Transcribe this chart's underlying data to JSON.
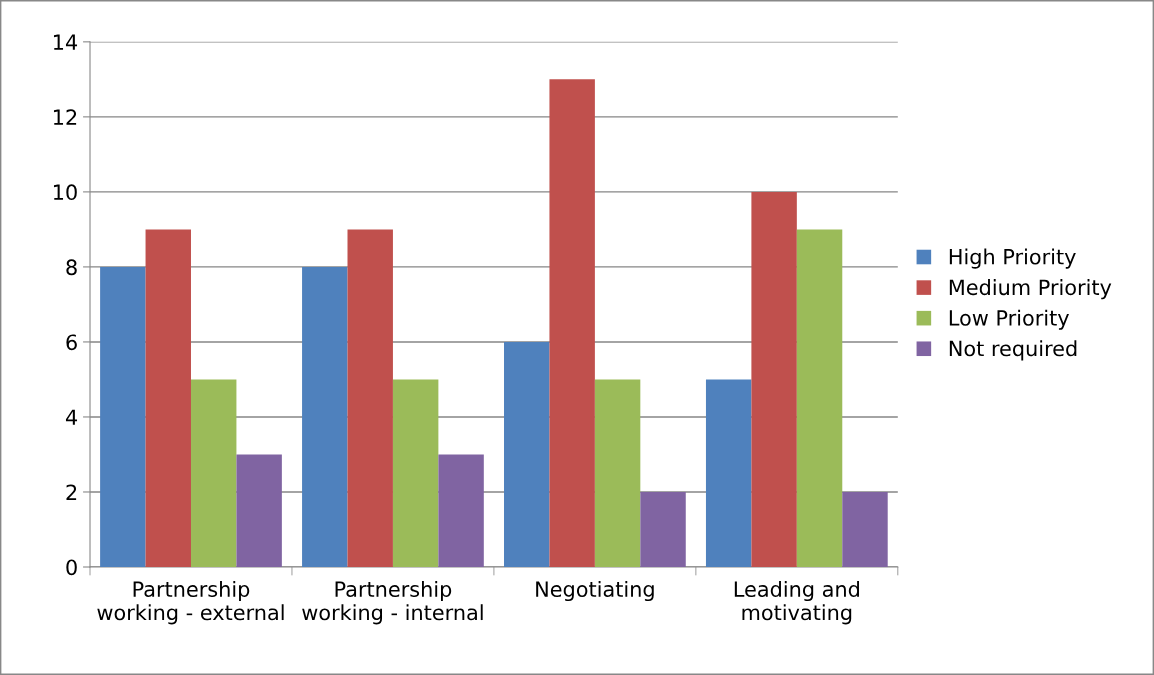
{
  "chart_data": {
    "type": "bar",
    "categories": [
      "Partnership\nworking - external",
      "Partnership\nworking - internal",
      "Negotiating",
      "Leading and\nmotivating"
    ],
    "series": [
      {
        "name": "High Priority",
        "color": "#4f81bd",
        "values": [
          8,
          8,
          6,
          5
        ]
      },
      {
        "name": "Medium Priority",
        "color": "#c0504d",
        "values": [
          9,
          9,
          13,
          10
        ]
      },
      {
        "name": "Low Priority",
        "color": "#9bbb59",
        "values": [
          5,
          5,
          5,
          9
        ]
      },
      {
        "name": "Not required",
        "color": "#8064a2",
        "values": [
          3,
          3,
          2,
          2
        ]
      }
    ],
    "ylim": [
      0,
      14
    ],
    "yticks": [
      0,
      2,
      4,
      6,
      8,
      10,
      12,
      14
    ],
    "grid": "y",
    "legend": "right"
  }
}
